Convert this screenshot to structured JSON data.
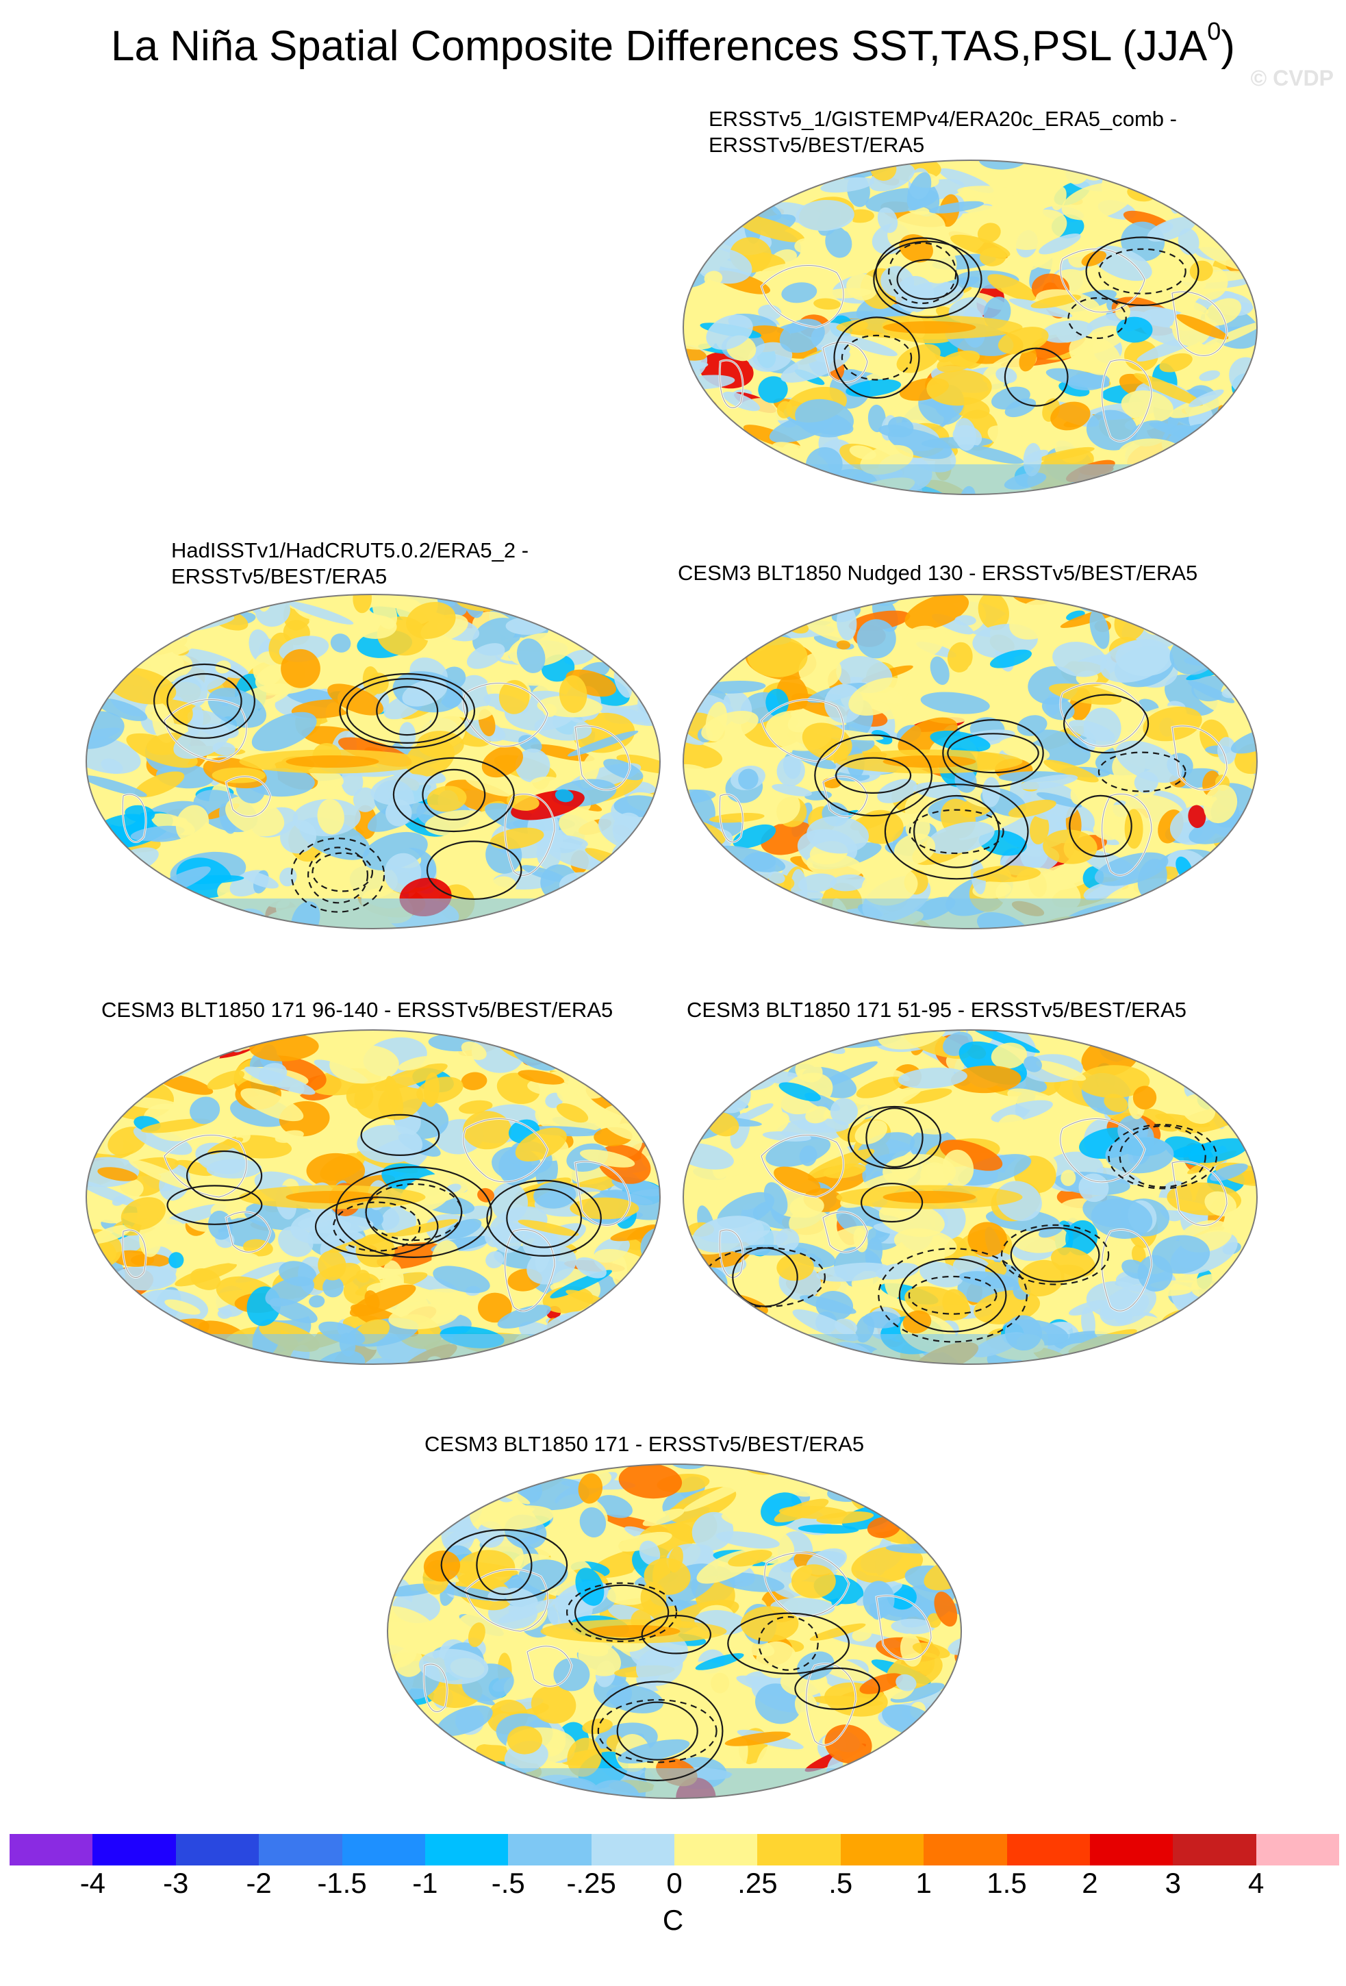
{
  "figure": {
    "title_main": "La Niña Spatial Composite Differences SST,TAS,PSL (JJA",
    "title_sup": "0",
    "title_close": ")",
    "credit": "© CVDP"
  },
  "chart_data": [
    {
      "type": "heatmap",
      "title_line1": "ERSSTv5_1/GISTEMPv4/ERA20c_ERA5_comb -",
      "title_line2": "ERSSTv5/BEST/ERA5",
      "projection": "robinson-like (Pacific-centered)",
      "field": "SST/TAS difference (shaded), PSL difference (contours)"
    },
    {
      "type": "heatmap",
      "title_line1": "HadISSTv1/HadCRUT5.0.2/ERA5_2 -",
      "title_line2": "ERSSTv5/BEST/ERA5",
      "projection": "robinson-like (Pacific-centered)",
      "field": "SST/TAS difference (shaded), PSL difference (contours)"
    },
    {
      "type": "heatmap",
      "title_line1": "CESM3 BLT1850 Nudged 130 - ERSSTv5/BEST/ERA5",
      "title_line2": "",
      "projection": "robinson-like (Pacific-centered)",
      "field": "SST/TAS difference (shaded), PSL difference (contours)"
    },
    {
      "type": "heatmap",
      "title_line1": "CESM3 BLT1850 171 96-140 - ERSSTv5/BEST/ERA5",
      "title_line2": "",
      "projection": "robinson-like (Pacific-centered)",
      "field": "SST/TAS difference (shaded), PSL difference (contours)"
    },
    {
      "type": "heatmap",
      "title_line1": "CESM3 BLT1850 171 51-95 - ERSSTv5/BEST/ERA5",
      "title_line2": "",
      "projection": "robinson-like (Pacific-centered)",
      "field": "SST/TAS difference (shaded), PSL difference (contours)"
    },
    {
      "type": "heatmap",
      "title_line1": "CESM3 BLT1850 171 - ERSSTv5/BEST/ERA5",
      "title_line2": "",
      "projection": "robinson-like (Pacific-centered)",
      "field": "SST/TAS difference (shaded), PSL difference (contours)"
    }
  ],
  "colorbar": {
    "unit": "C",
    "ticks": [
      "-4",
      "-3",
      "-2",
      "-1.5",
      "-1",
      "-.5",
      "-.25",
      "0",
      ".25",
      ".5",
      "1",
      "1.5",
      "2",
      "3",
      "4"
    ],
    "colors": [
      "#8a2be2",
      "#1e00ff",
      "#2948e0",
      "#3a78ef",
      "#1e90ff",
      "#00bfff",
      "#7ec8f4",
      "#b5dff6",
      "#fff68f",
      "#ffd530",
      "#ffa500",
      "#ff7600",
      "#ff3c00",
      "#e60000",
      "#c81e1e",
      "#ffb6c1"
    ]
  }
}
